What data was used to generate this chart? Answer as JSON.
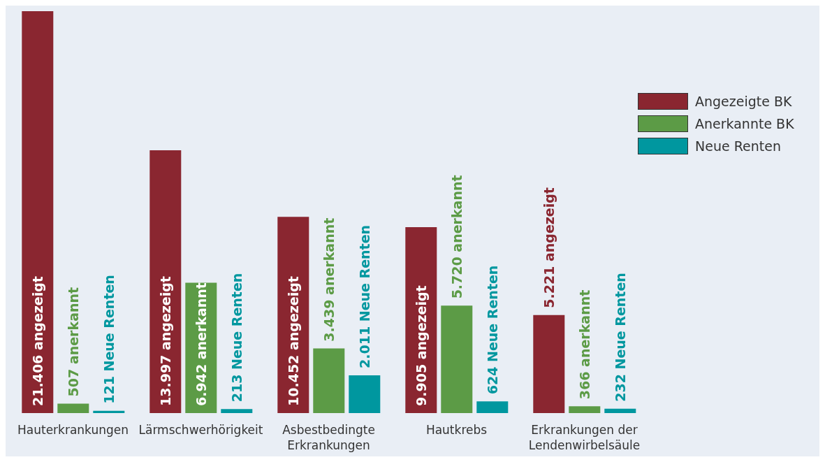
{
  "chart_data": {
    "type": "bar",
    "categories": [
      "Hauterkrankungen",
      "Lärmschwerhörigkeit",
      "Asbestbedingte Erkrankungen",
      "Hautkrebs",
      "Erkrankungen der Lendenwirbelsäule"
    ],
    "series": [
      {
        "name": "Angezeigte BK",
        "color": "#8a2630",
        "values": [
          21406,
          13997,
          10452,
          9905,
          5221
        ],
        "value_labels": [
          "21.406 angezeigt",
          "13.997 angezeigt",
          "10.452 angezeigt",
          "9.905 angezeigt",
          "5.221 angezeigt"
        ]
      },
      {
        "name": "Anerkannte BK",
        "color": "#5c9b46",
        "values": [
          507,
          6942,
          3439,
          5720,
          366
        ],
        "value_labels": [
          "507 anerkannt",
          "6.942 anerkannt",
          "3.439 anerkannt",
          "5.720 anerkannt",
          "366 anerkannt"
        ]
      },
      {
        "name": "Neue Renten",
        "color": "#00979f",
        "values": [
          121,
          213,
          2011,
          624,
          232
        ],
        "value_labels": [
          "121 Neue Renten",
          "213 Neue Renten",
          "2.011 Neue Renten",
          "624 Neue Renten",
          "232 Neue Renten"
        ]
      }
    ],
    "legend": "top right",
    "grid": false
  }
}
